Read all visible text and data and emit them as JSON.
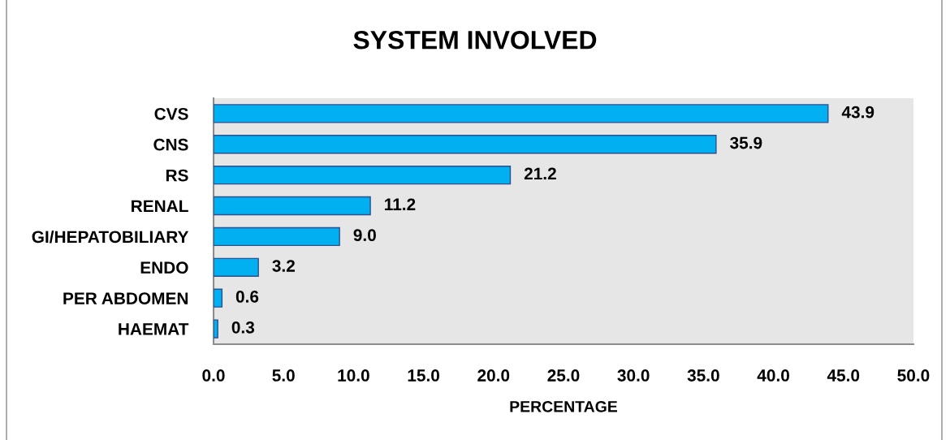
{
  "chart_data": {
    "type": "bar",
    "orientation": "horizontal",
    "title": "SYSTEM INVOLVED",
    "xlabel": "PERCENTAGE",
    "categories": [
      "CVS",
      "CNS",
      "RS",
      "RENAL",
      "GI/HEPATOBILIARY",
      "ENDO",
      "PER ABDOMEN",
      "HAEMAT"
    ],
    "values": [
      43.9,
      35.9,
      21.2,
      11.2,
      9.0,
      3.2,
      0.6,
      0.3
    ],
    "color": "#00b0f0",
    "value_labels": [
      "43.9",
      "35.9",
      "21.2",
      "11.2",
      "9.0",
      "3.2",
      "0.6",
      "0.3"
    ],
    "xlim": [
      0,
      50
    ],
    "xticks": [
      {
        "value": 0,
        "label": "0.0"
      },
      {
        "value": 5,
        "label": "5.0"
      },
      {
        "value": 10,
        "label": "10.0"
      },
      {
        "value": 15,
        "label": "15.0"
      },
      {
        "value": 20,
        "label": "20.0"
      },
      {
        "value": 25,
        "label": "25.0"
      },
      {
        "value": 30,
        "label": "30.0"
      },
      {
        "value": 35,
        "label": "35.0"
      },
      {
        "value": 40,
        "label": "40.0"
      },
      {
        "value": 45,
        "label": "45.0"
      },
      {
        "value": 50,
        "label": "50.0"
      }
    ],
    "grid": false,
    "legend": false
  }
}
